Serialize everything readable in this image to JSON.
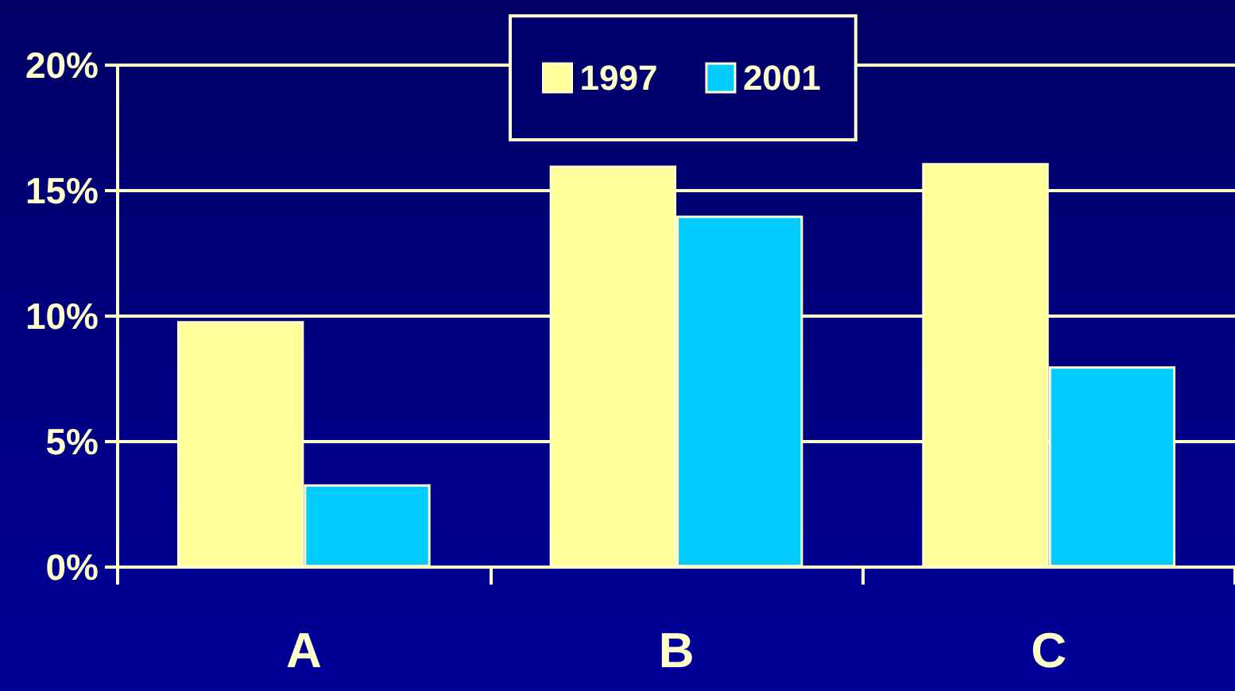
{
  "chart_data": {
    "type": "bar",
    "categories": [
      "A",
      "B",
      "C"
    ],
    "series": [
      {
        "name": "1997",
        "color": "#ffff99",
        "values": [
          9.8,
          16.0,
          16.1
        ]
      },
      {
        "name": "2001",
        "color": "#00ccff",
        "values": [
          3.3,
          14.0,
          8.0
        ]
      }
    ],
    "ylim": [
      0,
      20
    ],
    "yticks": [
      {
        "value": 0,
        "label": "0%"
      },
      {
        "value": 5,
        "label": "5%"
      },
      {
        "value": 10,
        "label": "10%"
      },
      {
        "value": 15,
        "label": "15%"
      },
      {
        "value": 20,
        "label": "20%"
      }
    ],
    "grid": "y",
    "legend": "top"
  }
}
